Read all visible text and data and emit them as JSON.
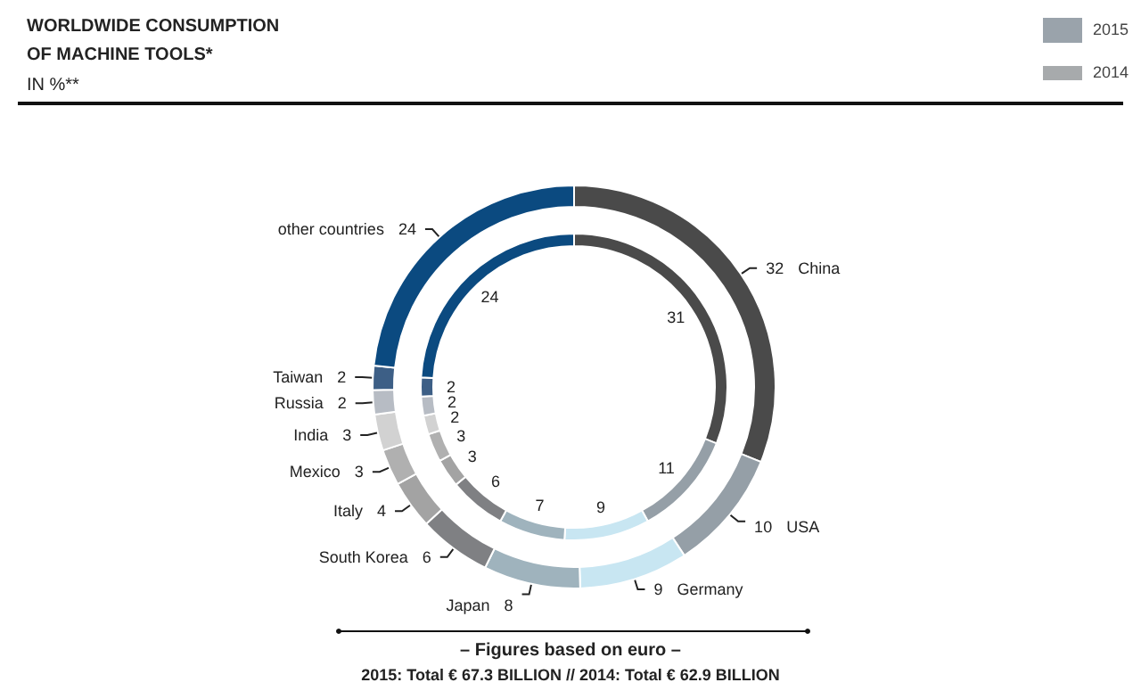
{
  "chart_data": {
    "type": "donut",
    "title": "WORLDWIDE CONSUMPTION\nOF MACHINE TOOLS*",
    "subtitle": "IN %**",
    "categories": [
      "China",
      "USA",
      "Germany",
      "Japan",
      "South Korea",
      "Italy",
      "Mexico",
      "India",
      "Russia",
      "Taiwan",
      "other countries"
    ],
    "series": [
      {
        "name": "2015",
        "color": "#9aa3ab",
        "values": [
          32,
          10,
          9,
          8,
          6,
          4,
          3,
          3,
          2,
          2,
          24
        ],
        "colors": [
          "#4a4a4a",
          "#959fa7",
          "#c8e6f2",
          "#9fb3bd",
          "#7f8083",
          "#a3a3a3",
          "#b0b0b0",
          "#d2d2d2",
          "#b7bcc4",
          "#3d5f86",
          "#0b4a80"
        ]
      },
      {
        "name": "2014",
        "color": "#a7aaac",
        "values": [
          31,
          11,
          9,
          7,
          6,
          3,
          3,
          2,
          2,
          2,
          24
        ],
        "colors": [
          "#4a4a4a",
          "#959fa7",
          "#c8e6f2",
          "#9fb3bd",
          "#7f8083",
          "#a3a3a3",
          "#b0b0b0",
          "#d2d2d2",
          "#b7bcc4",
          "#3d5f86",
          "#0b4a80"
        ]
      }
    ],
    "legend": "top right",
    "data_labels": true,
    "annotations": [
      "– Figures based on euro –",
      "2015: Total € 67.3 BILLION // 2014: Total € 62.9 BILLION"
    ]
  }
}
